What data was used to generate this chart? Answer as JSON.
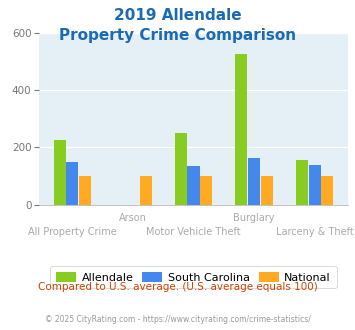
{
  "title_line1": "2019 Allendale",
  "title_line2": "Property Crime Comparison",
  "categories": [
    "All Property Crime",
    "Arson",
    "Motor Vehicle Theft",
    "Burglary",
    "Larceny & Theft"
  ],
  "allendale": [
    225,
    0,
    250,
    525,
    155
  ],
  "south_carolina": [
    148,
    0,
    135,
    163,
    138
  ],
  "national": [
    100,
    100,
    100,
    100,
    100
  ],
  "color_allendale": "#88cc22",
  "color_sc": "#4488ee",
  "color_national": "#ffaa22",
  "ylim": [
    0,
    600
  ],
  "yticks": [
    0,
    200,
    400,
    600
  ],
  "bg_color": "#e4f0f5",
  "title_color": "#1a6ab5",
  "xlabel_color": "#aaaaaa",
  "footer_text": "© 2025 CityRating.com - https://www.cityrating.com/crime-statistics/",
  "compare_text": "Compared to U.S. average. (U.S. average equals 100)"
}
